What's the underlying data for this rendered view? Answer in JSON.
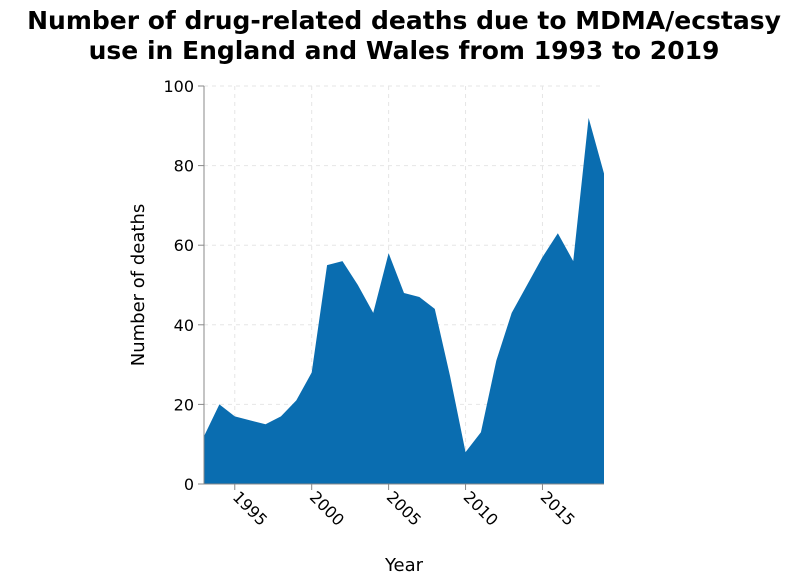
{
  "chart_data": {
    "type": "area",
    "title_lines": [
      "Number of drug-related deaths due to MDMA/ecstasy",
      "use in England and Wales from 1993 to 2019"
    ],
    "xlabel": "Year",
    "ylabel": "Number of deaths",
    "xlim": [
      1993,
      2019
    ],
    "ylim": [
      0,
      100
    ],
    "x_ticks": [
      "1995",
      "2000",
      "2005",
      "2010",
      "2015"
    ],
    "y_ticks": [
      "0",
      "20",
      "40",
      "60",
      "80",
      "100"
    ],
    "grid": true,
    "fill_color": "#0a6db0",
    "x": [
      1993,
      1994,
      1995,
      1996,
      1997,
      1998,
      1999,
      2000,
      2001,
      2002,
      2003,
      2004,
      2005,
      2006,
      2007,
      2008,
      2009,
      2010,
      2011,
      2012,
      2013,
      2014,
      2015,
      2016,
      2017,
      2018,
      2019
    ],
    "values": [
      12,
      20,
      17,
      16,
      15,
      17,
      21,
      28,
      55,
      56,
      50,
      43,
      58,
      48,
      47,
      44,
      27,
      8,
      13,
      31,
      43,
      50,
      57,
      63,
      56,
      92,
      78
    ]
  }
}
